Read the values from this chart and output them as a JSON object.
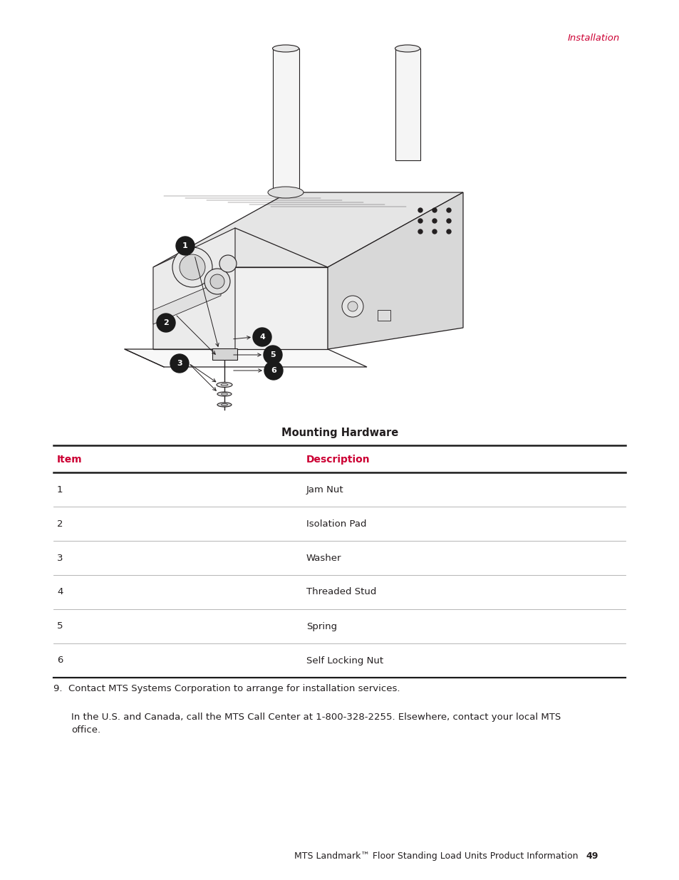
{
  "header_text": "Installation",
  "header_color": "#cc0033",
  "table_title": "Mounting Hardware",
  "table_col1_header": "Item",
  "table_col2_header": "Description",
  "header_color_red": "#cc0033",
  "table_rows": [
    [
      "1",
      "Jam Nut"
    ],
    [
      "2",
      "Isolation Pad"
    ],
    [
      "3",
      "Washer"
    ],
    [
      "4",
      "Threaded Stud"
    ],
    [
      "5",
      "Spring"
    ],
    [
      "6",
      "Self Locking Nut"
    ]
  ],
  "step9_line1": "9.  Contact MTS Systems Corporation to arrange for installation services.",
  "step9_line2": "In the U.S. and Canada, call the MTS Call Center at 1-800-328-2255. Elsewhere, contact your local MTS\noffice.",
  "footer_normal": "MTS Landmark™ Floor Standing Load Units Product Information  ",
  "footer_bold": "49",
  "bg_color": "#ffffff",
  "text_color": "#231f20",
  "font_size_body": 9.5,
  "font_size_header": 10,
  "font_size_table_header": 10,
  "font_size_footer": 9
}
